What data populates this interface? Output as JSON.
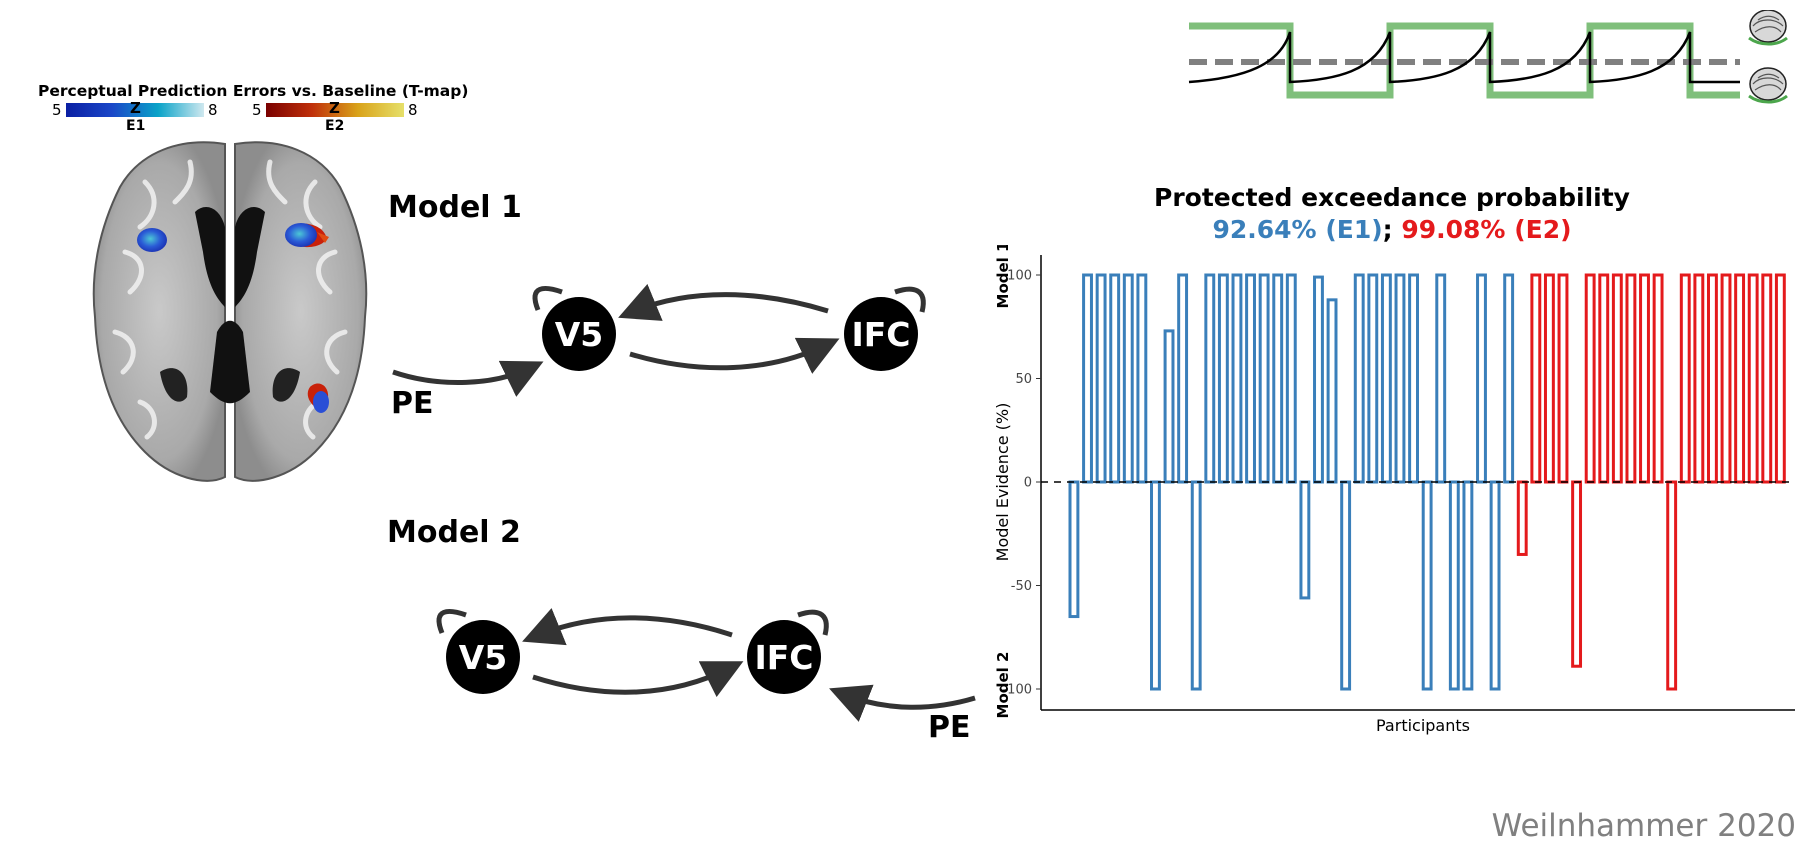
{
  "brain_panel": {
    "title": "Perceptual Prediction Errors vs. Baseline (T-map)",
    "colorbars": [
      {
        "min": "5",
        "max": "8",
        "mid": "Z",
        "name": "E1",
        "colors": [
          "#0a1fa3",
          "#1a47c8",
          "#0aa3c8",
          "#cfe8ef"
        ]
      },
      {
        "min": "5",
        "max": "8",
        "mid": "Z",
        "name": "E2",
        "colors": [
          "#7a0000",
          "#c0300a",
          "#d9a31a",
          "#e6e06a"
        ]
      }
    ]
  },
  "model1": {
    "label": "Model 1",
    "input_label": "PE",
    "nodes": [
      "V5",
      "IFC"
    ]
  },
  "model2": {
    "label": "Model 2",
    "input_label": "PE",
    "nodes": [
      "V5",
      "IFC"
    ]
  },
  "signal_panel": {
    "colors": {
      "square": "#7fbf7b",
      "threshold": "#808080",
      "trace": "#000000"
    }
  },
  "chart": {
    "title": "Protected exceedance probability",
    "subtitle_e1": "92.64% (E1)",
    "subtitle_sep": ";",
    "subtitle_e2": "99.08% (E2)"
  },
  "chart_data": {
    "type": "bar",
    "xlabel": "Participants",
    "ylabel": "Model Evidence (%)",
    "y_top_label": "Model 1",
    "y_bottom_label": "Model 2",
    "ylim": [
      -110,
      110
    ],
    "yticks": [
      100,
      50,
      0,
      -50,
      -100
    ],
    "series": [
      {
        "name": "E1",
        "color": "#3a7fba",
        "values": [
          -65,
          100,
          100,
          100,
          100,
          100,
          -100,
          73,
          100,
          -100,
          100,
          100,
          100,
          100,
          100,
          100,
          100,
          -56,
          99,
          88,
          -100,
          100,
          100,
          100,
          100,
          100,
          -100,
          100,
          -100,
          -100,
          100,
          -100,
          100
        ]
      },
      {
        "name": "E2",
        "color": "#e41a1c",
        "values": [
          -35,
          100,
          100,
          100,
          -89,
          100,
          100,
          100,
          100,
          100,
          100,
          -100,
          100,
          100,
          100,
          100,
          100,
          100,
          100,
          100
        ]
      }
    ]
  },
  "footer": {
    "credit": "Weilnhammer 2020"
  }
}
